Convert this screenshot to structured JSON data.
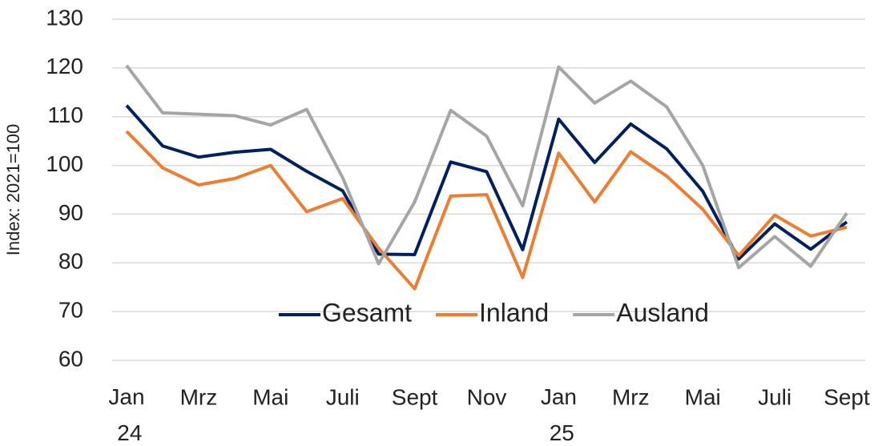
{
  "chart_data": {
    "type": "line",
    "ylabel": "Index: 2021=100",
    "categories": [
      "Jan 24",
      null,
      "Mrz",
      null,
      "Mai",
      null,
      "Juli",
      null,
      "Sept",
      null,
      "Nov",
      null,
      "Jan 25",
      null,
      "Mrz",
      null,
      "Mai",
      null,
      "Juli",
      null,
      "Sept"
    ],
    "series": [
      {
        "name": "Gesamt",
        "color": "#002060",
        "values": [
          112.3,
          104,
          101.7,
          102.7,
          103.3,
          98.8,
          94.8,
          81.8,
          81.7,
          100.7,
          98.7,
          82.7,
          109.5,
          100.6,
          108.5,
          103.4,
          94.7,
          80.8,
          88,
          82.8,
          88.4
        ]
      },
      {
        "name": "Inland",
        "color": "#ed7d31",
        "values": [
          107,
          99.5,
          96,
          97.3,
          100,
          90.5,
          93.2,
          83,
          74.7,
          93.7,
          94,
          77,
          102.5,
          92.5,
          102.8,
          97.8,
          91,
          81.5,
          89.8,
          85.5,
          87.3
        ]
      },
      {
        "name": "Ausland",
        "color": "#a5a5a5",
        "values": [
          120.5,
          110.8,
          110.5,
          110.2,
          108.3,
          111.5,
          97.5,
          79.8,
          92.5,
          111.3,
          106,
          91.7,
          120.2,
          112.8,
          117.3,
          112,
          100,
          79,
          85.4,
          79.3,
          90.2
        ]
      }
    ],
    "ylim": [
      60,
      130
    ],
    "yticks": [
      60,
      70,
      80,
      90,
      100,
      110,
      120,
      130
    ],
    "grid": true,
    "legend": "lower center"
  }
}
